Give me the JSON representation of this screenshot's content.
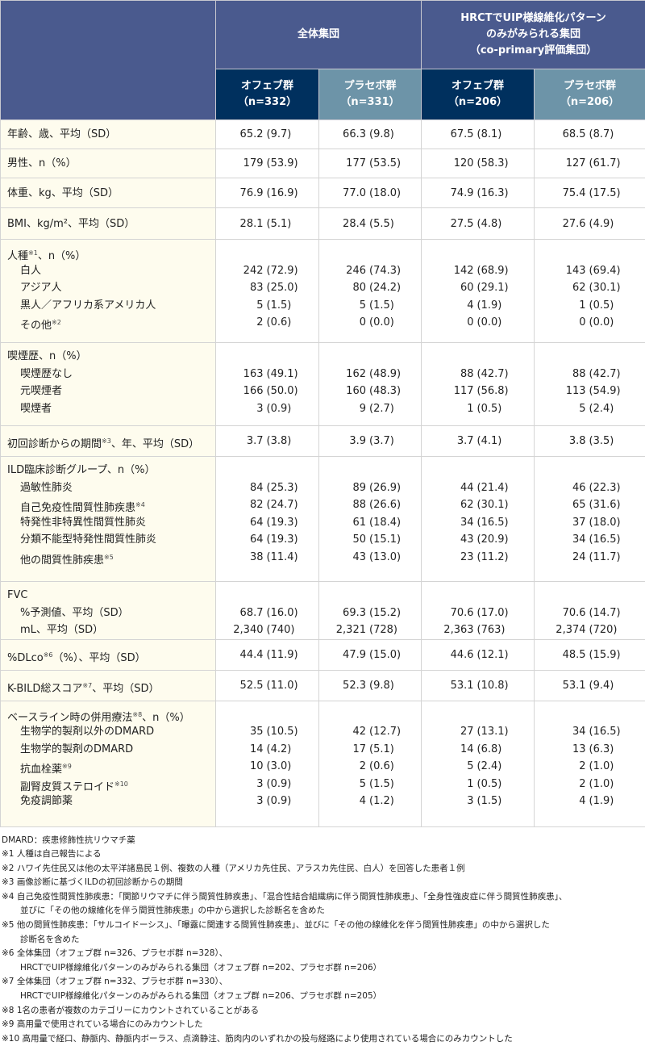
{
  "header": {
    "group_all": "全体集団",
    "group_uip": [
      "HRCTでUIP様線維化パターン",
      "のみがみられる集団",
      "（co-primary評価集団）"
    ],
    "cols": [
      {
        "name": "オフェブ群",
        "n": "（n=332）"
      },
      {
        "name": "プラセボ群",
        "n": "（n=331）"
      },
      {
        "name": "オフェブ群",
        "n": "（n=206）"
      },
      {
        "name": "プラセボ群",
        "n": "（n=206）"
      }
    ]
  },
  "colors": {
    "header": "#4a5a8e",
    "ofev": "#00305e",
    "placebo": "#6d94a8",
    "label_bg": "#fefcee"
  },
  "groups": [
    {
      "label": "年齢、歳、平均（SD）",
      "values": [
        [
          "65.2",
          "(9.7)"
        ],
        [
          "66.3",
          "(9.8)"
        ],
        [
          "67.5",
          "(8.1)"
        ],
        [
          "68.5",
          "(8.7)"
        ]
      ]
    },
    {
      "label": "男性、n（%）",
      "values": [
        [
          "179",
          "(53.9)"
        ],
        [
          "177",
          "(53.5)"
        ],
        [
          "120",
          "(58.3)"
        ],
        [
          "127",
          "(61.7)"
        ]
      ]
    },
    {
      "label": "体重、kg、平均（SD）",
      "values": [
        [
          "76.9",
          "(16.9)"
        ],
        [
          "77.0",
          "(18.0)"
        ],
        [
          "74.9",
          "(16.3)"
        ],
        [
          "75.4",
          "(17.5)"
        ]
      ]
    },
    {
      "label": "BMI、kg/m²、平均（SD）",
      "values": [
        [
          "28.1",
          "(5.1)"
        ],
        [
          "28.4",
          "(5.5)"
        ],
        [
          "27.5",
          "(4.8)"
        ],
        [
          "27.6",
          "(4.9)"
        ]
      ]
    },
    {
      "label": "人種",
      "sup": "※1",
      "suffix": "、n（%）",
      "items": [
        {
          "label": "白人",
          "values": [
            [
              "242",
              "(72.9)"
            ],
            [
              "246",
              "(74.3)"
            ],
            [
              "142",
              "(68.9)"
            ],
            [
              "143",
              "(69.4)"
            ]
          ]
        },
        {
          "label": "アジア人",
          "values": [
            [
              "83",
              "(25.0)"
            ],
            [
              "80",
              "(24.2)"
            ],
            [
              "60",
              "(29.1)"
            ],
            [
              "62",
              "(30.1)"
            ]
          ]
        },
        {
          "label": "黒人／アフリカ系アメリカ人",
          "values": [
            [
              "5",
              "(1.5)"
            ],
            [
              "5",
              "(1.5)"
            ],
            [
              "4",
              "(1.9)"
            ],
            [
              "1",
              "(0.5)"
            ]
          ]
        },
        {
          "label": "その他",
          "sup": "※2",
          "values": [
            [
              "2",
              "(0.6)"
            ],
            [
              "0",
              "(0.0)"
            ],
            [
              "0",
              "(0.0)"
            ],
            [
              "0",
              "(0.0)"
            ]
          ]
        }
      ]
    },
    {
      "label": "喫煙歴、n（%）",
      "items": [
        {
          "label": "喫煙歴なし",
          "values": [
            [
              "163",
              "(49.1)"
            ],
            [
              "162",
              "(48.9)"
            ],
            [
              "88",
              "(42.7)"
            ],
            [
              "88",
              "(42.7)"
            ]
          ]
        },
        {
          "label": "元喫煙者",
          "values": [
            [
              "166",
              "(50.0)"
            ],
            [
              "160",
              "(48.3)"
            ],
            [
              "117",
              "(56.8)"
            ],
            [
              "113",
              "(54.9)"
            ]
          ]
        },
        {
          "label": "喫煙者",
          "values": [
            [
              "3",
              "(0.9)"
            ],
            [
              "9",
              "(2.7)"
            ],
            [
              "1",
              "(0.5)"
            ],
            [
              "5",
              "(2.4)"
            ]
          ]
        }
      ]
    },
    {
      "label": "初回診断からの期間",
      "sup": "※3",
      "suffix": "、年、平均（SD）",
      "values": [
        [
          "3.7",
          "(3.8)"
        ],
        [
          "3.9",
          "(3.7)"
        ],
        [
          "3.7",
          "(4.1)"
        ],
        [
          "3.8",
          "(3.5)"
        ]
      ]
    },
    {
      "label": "ILD臨床診断グループ、n（%）",
      "items": [
        {
          "label": "過敏性肺炎",
          "values": [
            [
              "84",
              "(25.3)"
            ],
            [
              "89",
              "(26.9)"
            ],
            [
              "44",
              "(21.4)"
            ],
            [
              "46",
              "(22.3)"
            ]
          ]
        },
        {
          "label": "自己免疫性間質性肺疾患",
          "sup": "※4",
          "values": [
            [
              "82",
              "(24.7)"
            ],
            [
              "88",
              "(26.6)"
            ],
            [
              "62",
              "(30.1)"
            ],
            [
              "65",
              "(31.6)"
            ]
          ]
        },
        {
          "label": "特発性非特異性間質性肺炎",
          "values": [
            [
              "64",
              "(19.3)"
            ],
            [
              "61",
              "(18.4)"
            ],
            [
              "34",
              "(16.5)"
            ],
            [
              "37",
              "(18.0)"
            ]
          ]
        },
        {
          "label": "分類不能型特発性間質性肺炎",
          "values": [
            [
              "64",
              "(19.3)"
            ],
            [
              "50",
              "(15.1)"
            ],
            [
              "43",
              "(20.9)"
            ],
            [
              "34",
              "(16.5)"
            ]
          ]
        },
        {
          "label": "他の間質性肺疾患",
          "sup": "※5",
          "values": [
            [
              "38",
              "(11.4)"
            ],
            [
              "43",
              "(13.0)"
            ],
            [
              "23",
              "(11.2)"
            ],
            [
              "24",
              "(11.7)"
            ]
          ]
        }
      ]
    },
    {
      "label": "FVC",
      "items": [
        {
          "label": "%予測値、平均（SD）",
          "values": [
            [
              "68.7",
              "(16.0)"
            ],
            [
              "69.3",
              "(15.2)"
            ],
            [
              "70.6",
              "(17.0)"
            ],
            [
              "70.6",
              "(14.7)"
            ]
          ]
        },
        {
          "label": "mL、平均（SD）",
          "values": [
            [
              "2,340",
              "(740)"
            ],
            [
              "2,321",
              "(728)"
            ],
            [
              "2,363",
              "(763)"
            ],
            [
              "2,374",
              "(720)"
            ]
          ]
        }
      ]
    },
    {
      "label": "%DLco",
      "sup": "※6",
      "suffix": "（%）、平均（SD）",
      "values": [
        [
          "44.4",
          "(11.9)"
        ],
        [
          "47.9",
          "(15.0)"
        ],
        [
          "44.6",
          "(12.1)"
        ],
        [
          "48.5",
          "(15.9)"
        ]
      ]
    },
    {
      "label": "K-BILD総スコア",
      "sup": "※7",
      "suffix": "、平均（SD）",
      "values": [
        [
          "52.5",
          "(11.0)"
        ],
        [
          "52.3",
          "(9.8)"
        ],
        [
          "53.1",
          "(10.8)"
        ],
        [
          "53.1",
          "(9.4)"
        ]
      ]
    },
    {
      "label": "ベースライン時の併用療法",
      "sup": "※8",
      "suffix": "、n（%）",
      "items": [
        {
          "label": "生物学的製剤以外のDMARD",
          "values": [
            [
              "35",
              "(10.5)"
            ],
            [
              "42",
              "(12.7)"
            ],
            [
              "27",
              "(13.1)"
            ],
            [
              "34",
              "(16.5)"
            ]
          ]
        },
        {
          "label": "生物学的製剤のDMARD",
          "values": [
            [
              "14",
              "(4.2)"
            ],
            [
              "17",
              "(5.1)"
            ],
            [
              "14",
              "(6.8)"
            ],
            [
              "13",
              "(6.3)"
            ]
          ]
        },
        {
          "label": "抗血栓薬",
          "sup": "※9",
          "values": [
            [
              "10",
              "(3.0)"
            ],
            [
              "2",
              "(0.6)"
            ],
            [
              "5",
              "(2.4)"
            ],
            [
              "2",
              "(1.0)"
            ]
          ]
        },
        {
          "label": "副腎皮質ステロイド",
          "sup": "※10",
          "values": [
            [
              "3",
              "(0.9)"
            ],
            [
              "5",
              "(1.5)"
            ],
            [
              "1",
              "(0.5)"
            ],
            [
              "2",
              "(1.0)"
            ]
          ]
        },
        {
          "label": "免疫調節薬",
          "values": [
            [
              "3",
              "(0.9)"
            ],
            [
              "4",
              "(1.2)"
            ],
            [
              "3",
              "(1.5)"
            ],
            [
              "4",
              "(1.9)"
            ]
          ]
        }
      ]
    }
  ],
  "footnotes": [
    {
      "text": "DMARD：疾患修飾性抗リウマチ薬"
    },
    {
      "text": "※1 人種は自己報告による"
    },
    {
      "text": "※2 ハワイ先住民又は他の太平洋諸島民１例、複数の人種（アメリカ先住民、アラスカ先住民、白人）を回答した患者１例"
    },
    {
      "text": "※3 画像診断に基づくILDの初回診断からの期間"
    },
    {
      "text": "※4 自己免疫性間質性肺疾患：「関節リウマチに伴う間質性肺疾患」、「混合性結合組織病に伴う間質性肺疾患」、「全身性強皮症に伴う間質性肺疾患」、"
    },
    {
      "text": "並びに「その他の線維化を伴う間質性肺疾患」の中から選択した診断名を含めた",
      "indent": true
    },
    {
      "text": "※5 他の間質性肺疾患：「サルコイドーシス」、「曝露に関連する間質性肺疾患」、並びに「その他の線維化を伴う間質性肺疾患」の中から選択した"
    },
    {
      "text": "診断名を含めた",
      "indent": true
    },
    {
      "text": "※6 全体集団（オフェブ群 n=326、プラセボ群 n=328）、"
    },
    {
      "text": "HRCTでUIP様線維化パターンのみがみられる集団（オフェブ群 n=202、プラセボ群 n=206）",
      "indent": true
    },
    {
      "text": "※7 全体集団（オフェブ群 n=332、プラセボ群 n=330）、"
    },
    {
      "text": "HRCTでUIP様線維化パターンのみがみられる集団（オフェブ群 n=206、プラセボ群 n=205）",
      "indent": true
    },
    {
      "text": "※8 1名の患者が複数のカテゴリーにカウントされていることがある"
    },
    {
      "text": "※9 高用量で使用されている場合にのみカウントした"
    },
    {
      "text": "※10 高用量で経口、静脈内、静脈内ボーラス、点滴静注、筋肉内のいずれかの投与経路により使用されている場合にのみカウントした"
    }
  ]
}
